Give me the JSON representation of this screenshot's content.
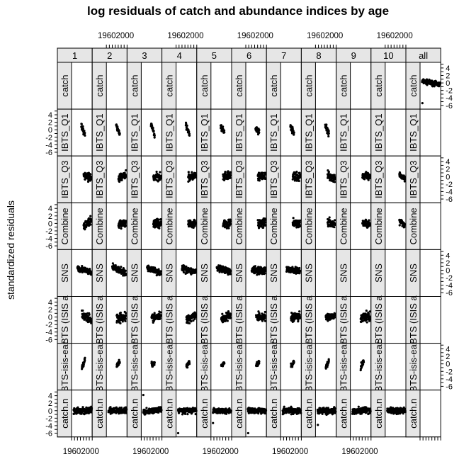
{
  "chart_data": {
    "type": "scatter",
    "title": "log residuals of catch and abundance indices by age",
    "ylabel": "standardized residuals",
    "columns": [
      "1",
      "2",
      "3",
      "4",
      "5",
      "6",
      "7",
      "8",
      "9",
      "10",
      "all"
    ],
    "rows": [
      "catch",
      "IBTS_Q1",
      "IBTS_Q3",
      "Combined",
      "SNS",
      "BTS-isis",
      "BTS-isis-early",
      "catch.n"
    ],
    "row_strip_labels": [
      "catch",
      "IBTS_Q1",
      "IBTS_Q3",
      "Combine",
      "SNS",
      "BTS (ISIS a",
      "BTS-isis-ear",
      "catch.n"
    ],
    "xlim": [
      1950,
      2020
    ],
    "ylim": [
      -7,
      5.5
    ],
    "x_tick_labels": [
      "1960",
      "2000"
    ],
    "y_ticks": [
      4,
      2,
      0,
      -2,
      -4,
      -6
    ],
    "cells": [
      {
        "row": "catch",
        "col": "all",
        "start": 1957,
        "end": 2018,
        "slope": -0.015,
        "noise": 0.45,
        "outlier": [
          1958,
          -5.4
        ]
      },
      {
        "row": "IBTS_Q1",
        "col": "1",
        "start": 1983,
        "end": 1995,
        "slope": -0.2,
        "noise": 0.6
      },
      {
        "row": "IBTS_Q1",
        "col": "2",
        "start": 1983,
        "end": 1995,
        "slope": -0.15,
        "noise": 0.5
      },
      {
        "row": "IBTS_Q1",
        "col": "3",
        "start": 1983,
        "end": 1995,
        "slope": -0.25,
        "noise": 0.5
      },
      {
        "row": "IBTS_Q1",
        "col": "4",
        "start": 1983,
        "end": 1995,
        "slope": -0.2,
        "noise": 0.5
      },
      {
        "row": "IBTS_Q1",
        "col": "5",
        "start": 1983,
        "end": 1995,
        "slope": -0.15,
        "noise": 0.6
      },
      {
        "row": "IBTS_Q1",
        "col": "6",
        "start": 1983,
        "end": 1995,
        "slope": -0.1,
        "noise": 0.6
      },
      {
        "row": "IBTS_Q1",
        "col": "7",
        "start": 1983,
        "end": 1995,
        "slope": -0.15,
        "noise": 0.5
      },
      {
        "row": "IBTS_Q1",
        "col": "8",
        "start": 1983,
        "end": 1995,
        "slope": -0.2,
        "noise": 0.6
      },
      {
        "row": "IBTS_Q3",
        "col": "1",
        "start": 1991,
        "end": 2016,
        "slope": -0.02,
        "noise": 0.8
      },
      {
        "row": "IBTS_Q3",
        "col": "2",
        "start": 1991,
        "end": 2016,
        "slope": 0.05,
        "noise": 0.8
      },
      {
        "row": "IBTS_Q3",
        "col": "3",
        "start": 1991,
        "end": 2016,
        "slope": 0.02,
        "noise": 0.8
      },
      {
        "row": "IBTS_Q3",
        "col": "4",
        "start": 1991,
        "end": 2016,
        "slope": 0.02,
        "noise": 0.8
      },
      {
        "row": "IBTS_Q3",
        "col": "5",
        "start": 1991,
        "end": 2016,
        "slope": 0.02,
        "noise": 0.8
      },
      {
        "row": "IBTS_Q3",
        "col": "6",
        "start": 1991,
        "end": 2016,
        "slope": 0.0,
        "noise": 0.8
      },
      {
        "row": "IBTS_Q3",
        "col": "7",
        "start": 1991,
        "end": 2016,
        "slope": -0.01,
        "noise": 0.8
      },
      {
        "row": "IBTS_Q3",
        "col": "8",
        "start": 1991,
        "end": 2016,
        "slope": -0.03,
        "noise": 0.8
      },
      {
        "row": "IBTS_Q3",
        "col": "9",
        "start": 1991,
        "end": 2016,
        "slope": -0.02,
        "noise": 0.7
      },
      {
        "row": "IBTS_Q3",
        "col": "10",
        "start": 1998,
        "end": 2016,
        "slope": -0.04,
        "noise": 0.6
      },
      {
        "row": "Combined",
        "col": "1",
        "start": 1991,
        "end": 2016,
        "slope": 0.04,
        "noise": 0.8
      },
      {
        "row": "Combined",
        "col": "2",
        "start": 1991,
        "end": 2016,
        "slope": 0.02,
        "noise": 0.8
      },
      {
        "row": "Combined",
        "col": "3",
        "start": 1991,
        "end": 2016,
        "slope": 0.0,
        "noise": 0.8
      },
      {
        "row": "Combined",
        "col": "4",
        "start": 1991,
        "end": 2016,
        "slope": 0.0,
        "noise": 0.8
      },
      {
        "row": "Combined",
        "col": "5",
        "start": 1991,
        "end": 2016,
        "slope": 0.0,
        "noise": 0.8
      },
      {
        "row": "Combined",
        "col": "6",
        "start": 1991,
        "end": 2016,
        "slope": 0.0,
        "noise": 0.8
      },
      {
        "row": "Combined",
        "col": "7",
        "start": 1991,
        "end": 2016,
        "slope": 0.0,
        "noise": 0.8
      },
      {
        "row": "Combined",
        "col": "8",
        "start": 1991,
        "end": 2016,
        "slope": -0.02,
        "noise": 0.8
      },
      {
        "row": "Combined",
        "col": "9",
        "start": 1991,
        "end": 2016,
        "slope": -0.02,
        "noise": 0.7
      },
      {
        "row": "Combined",
        "col": "10",
        "start": 1998,
        "end": 2016,
        "slope": -0.04,
        "noise": 0.7
      },
      {
        "row": "SNS",
        "col": "1",
        "start": 1970,
        "end": 2016,
        "slope": -0.03,
        "noise": 0.6
      },
      {
        "row": "SNS",
        "col": "2",
        "start": 1970,
        "end": 2016,
        "slope": -0.04,
        "noise": 0.6
      },
      {
        "row": "SNS",
        "col": "3",
        "start": 1970,
        "end": 2016,
        "slope": -0.03,
        "noise": 0.6
      },
      {
        "row": "SNS",
        "col": "4",
        "start": 1970,
        "end": 2016,
        "slope": -0.02,
        "noise": 0.6
      },
      {
        "row": "SNS",
        "col": "5",
        "start": 1970,
        "end": 2016,
        "slope": -0.02,
        "noise": 0.6
      },
      {
        "row": "SNS",
        "col": "6",
        "start": 1970,
        "end": 2016,
        "slope": -0.01,
        "noise": 0.7
      },
      {
        "row": "SNS",
        "col": "7",
        "start": 1970,
        "end": 2016,
        "slope": -0.01,
        "noise": 0.6
      },
      {
        "row": "BTS-isis",
        "col": "1",
        "start": 1985,
        "end": 2016,
        "slope": -0.05,
        "noise": 0.9
      },
      {
        "row": "BTS-isis",
        "col": "2",
        "start": 1985,
        "end": 2016,
        "slope": 0.02,
        "noise": 0.9
      },
      {
        "row": "BTS-isis",
        "col": "3",
        "start": 1985,
        "end": 2016,
        "slope": 0.02,
        "noise": 0.8
      },
      {
        "row": "BTS-isis",
        "col": "4",
        "start": 1985,
        "end": 2016,
        "slope": 0.05,
        "noise": 0.8
      },
      {
        "row": "BTS-isis",
        "col": "5",
        "start": 1985,
        "end": 2016,
        "slope": 0.04,
        "noise": 0.8
      },
      {
        "row": "BTS-isis",
        "col": "6",
        "start": 1985,
        "end": 2016,
        "slope": 0.0,
        "noise": 0.9
      },
      {
        "row": "BTS-isis",
        "col": "7",
        "start": 1985,
        "end": 2016,
        "slope": 0.02,
        "noise": 0.9
      },
      {
        "row": "BTS-isis",
        "col": "8",
        "start": 1985,
        "end": 2016,
        "slope": 0.0,
        "noise": 0.7
      },
      {
        "row": "BTS-isis",
        "col": "9",
        "start": 1985,
        "end": 2016,
        "slope": 0.02,
        "noise": 0.9
      },
      {
        "row": "BTS-isis-early",
        "col": "1",
        "start": 1985,
        "end": 1995,
        "slope": 0.2,
        "noise": 0.5
      },
      {
        "row": "BTS-isis-early",
        "col": "2",
        "start": 1985,
        "end": 1995,
        "slope": 0.1,
        "noise": 0.5
      },
      {
        "row": "BTS-isis-early",
        "col": "3",
        "start": 1985,
        "end": 1995,
        "slope": 0.0,
        "noise": 0.5
      },
      {
        "row": "BTS-isis-early",
        "col": "4",
        "start": 1985,
        "end": 1995,
        "slope": 0.1,
        "noise": 0.5
      },
      {
        "row": "BTS-isis-early",
        "col": "5",
        "start": 1985,
        "end": 1995,
        "slope": 0.05,
        "noise": 0.5
      },
      {
        "row": "BTS-isis-early",
        "col": "6",
        "start": 1985,
        "end": 1995,
        "slope": 0.05,
        "noise": 0.5
      },
      {
        "row": "BTS-isis-early",
        "col": "7",
        "start": 1985,
        "end": 1995,
        "slope": 0.1,
        "noise": 0.5
      },
      {
        "row": "BTS-isis-early",
        "col": "8",
        "start": 1985,
        "end": 1995,
        "slope": 0.15,
        "noise": 0.5
      },
      {
        "row": "BTS-isis-early",
        "col": "9",
        "start": 1985,
        "end": 1995,
        "slope": 0.15,
        "noise": 0.5
      },
      {
        "row": "catch.n",
        "col": "1",
        "start": 1957,
        "end": 2018,
        "slope": 0.005,
        "noise": 0.6
      },
      {
        "row": "catch.n",
        "col": "2",
        "start": 1957,
        "end": 2018,
        "slope": 0.0,
        "noise": 0.6
      },
      {
        "row": "catch.n",
        "col": "3",
        "start": 1957,
        "end": 2018,
        "slope": 0.01,
        "noise": 0.5,
        "outlier": [
          1957,
          4.2
        ]
      },
      {
        "row": "catch.n",
        "col": "4",
        "start": 1957,
        "end": 2018,
        "slope": 0.0,
        "noise": 0.5,
        "outlier": [
          1957,
          -6.0
        ]
      },
      {
        "row": "catch.n",
        "col": "5",
        "start": 1957,
        "end": 2018,
        "slope": 0.0,
        "noise": 0.5,
        "outlier": [
          1957,
          -3.3
        ]
      },
      {
        "row": "catch.n",
        "col": "6",
        "start": 1957,
        "end": 2018,
        "slope": 0.0,
        "noise": 0.5,
        "outlier": [
          1958,
          -6.0
        ]
      },
      {
        "row": "catch.n",
        "col": "7",
        "start": 1957,
        "end": 2018,
        "slope": 0.0,
        "noise": 0.6
      },
      {
        "row": "catch.n",
        "col": "8",
        "start": 1957,
        "end": 2018,
        "slope": 0.0,
        "noise": 0.6,
        "outlier": [
          1958,
          -3.8
        ]
      },
      {
        "row": "catch.n",
        "col": "9",
        "start": 1957,
        "end": 2018,
        "slope": 0.0,
        "noise": 0.6
      },
      {
        "row": "catch.n",
        "col": "10",
        "start": 1957,
        "end": 2018,
        "slope": 0.0,
        "noise": 0.6
      }
    ]
  }
}
